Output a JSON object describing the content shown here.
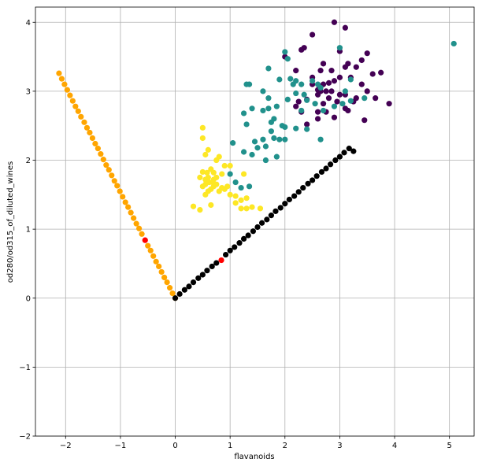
{
  "chart_data": {
    "type": "scatter",
    "title": "",
    "xlabel": "flavanoids",
    "ylabel": "od280/od315_of_diluted_wines",
    "xlim": [
      -2.55,
      5.45
    ],
    "ylim": [
      -2.0,
      4.22
    ],
    "xticks": [
      -2,
      -1,
      0,
      1,
      2,
      3,
      4,
      5
    ],
    "yticks": [
      -2,
      -1,
      0,
      1,
      2,
      3,
      4
    ],
    "grid": true,
    "legend": "none",
    "colors": {
      "class_0": "#440154",
      "class_1": "#21918c",
      "class_2": "#fde725",
      "vector_a": "#ffa500",
      "vector_b": "#000000",
      "highlight": "#ff0000"
    },
    "series": [
      {
        "color_key": "class_0",
        "points": [
          [
            2.9,
            4.0
          ],
          [
            3.1,
            3.92
          ],
          [
            2.5,
            3.82
          ],
          [
            2.3,
            3.6
          ],
          [
            2.35,
            3.63
          ],
          [
            2.7,
            3.4
          ],
          [
            3.0,
            3.58
          ],
          [
            3.15,
            3.4
          ],
          [
            3.5,
            3.55
          ],
          [
            3.4,
            3.45
          ],
          [
            2.65,
            3.3
          ],
          [
            2.85,
            3.3
          ],
          [
            3.1,
            3.35
          ],
          [
            3.3,
            3.35
          ],
          [
            3.6,
            3.25
          ],
          [
            3.75,
            3.27
          ],
          [
            2.2,
            3.3
          ],
          [
            2.0,
            3.5
          ],
          [
            2.5,
            3.2
          ],
          [
            2.7,
            3.1
          ],
          [
            2.9,
            3.15
          ],
          [
            3.0,
            3.2
          ],
          [
            3.2,
            3.2
          ],
          [
            3.4,
            3.1
          ],
          [
            3.5,
            3.0
          ],
          [
            3.65,
            2.9
          ],
          [
            3.3,
            2.9
          ],
          [
            3.1,
            2.95
          ],
          [
            2.95,
            2.85
          ],
          [
            2.8,
            2.9
          ],
          [
            2.6,
            2.95
          ],
          [
            2.65,
            3.0
          ],
          [
            2.75,
            3.0
          ],
          [
            2.7,
            2.82
          ],
          [
            2.6,
            2.7
          ],
          [
            2.4,
            2.88
          ],
          [
            2.3,
            2.7
          ],
          [
            2.25,
            2.85
          ],
          [
            3.25,
            2.85
          ],
          [
            3.9,
            2.82
          ],
          [
            3.45,
            2.58
          ],
          [
            3.1,
            2.75
          ],
          [
            2.9,
            2.62
          ],
          [
            2.75,
            2.7
          ],
          [
            2.6,
            2.6
          ],
          [
            2.4,
            2.52
          ],
          [
            3.15,
            2.72
          ],
          [
            2.8,
            3.12
          ],
          [
            2.6,
            3.02
          ],
          [
            2.2,
            2.78
          ],
          [
            2.5,
            3.1
          ],
          [
            3.0,
            2.95
          ],
          [
            2.85,
            3.0
          ]
        ]
      },
      {
        "color_key": "class_1",
        "points": [
          [
            5.08,
            3.69
          ],
          [
            2.0,
            3.57
          ],
          [
            2.05,
            3.47
          ],
          [
            1.9,
            3.17
          ],
          [
            2.2,
            3.15
          ],
          [
            1.7,
            3.33
          ],
          [
            1.6,
            3.0
          ],
          [
            1.35,
            3.1
          ],
          [
            1.7,
            2.9
          ],
          [
            1.3,
            3.1
          ],
          [
            2.1,
            3.18
          ],
          [
            2.15,
            3.1
          ],
          [
            2.3,
            3.1
          ],
          [
            2.5,
            3.15
          ],
          [
            2.6,
            3.1
          ],
          [
            2.65,
            3.05
          ],
          [
            3.0,
            3.63
          ],
          [
            3.1,
            3.0
          ],
          [
            3.2,
            3.17
          ],
          [
            3.45,
            2.9
          ],
          [
            3.2,
            2.86
          ],
          [
            3.05,
            2.82
          ],
          [
            2.9,
            2.78
          ],
          [
            2.7,
            2.72
          ],
          [
            2.55,
            2.82
          ],
          [
            2.4,
            2.87
          ],
          [
            2.35,
            2.95
          ],
          [
            2.2,
            2.97
          ],
          [
            2.3,
            2.72
          ],
          [
            2.05,
            2.88
          ],
          [
            1.85,
            2.78
          ],
          [
            1.7,
            2.75
          ],
          [
            1.4,
            2.75
          ],
          [
            1.25,
            2.68
          ],
          [
            1.3,
            2.52
          ],
          [
            1.6,
            2.72
          ],
          [
            1.8,
            2.6
          ],
          [
            1.95,
            2.5
          ],
          [
            2.0,
            2.48
          ],
          [
            1.75,
            2.42
          ],
          [
            1.45,
            2.27
          ],
          [
            1.5,
            2.18
          ],
          [
            1.6,
            2.3
          ],
          [
            1.65,
            2.2
          ],
          [
            1.8,
            2.32
          ],
          [
            1.85,
            2.05
          ],
          [
            1.65,
            2.0
          ],
          [
            1.9,
            2.3
          ],
          [
            1.4,
            2.08
          ],
          [
            1.25,
            2.12
          ],
          [
            1.05,
            2.25
          ],
          [
            1.0,
            1.8
          ],
          [
            1.1,
            1.68
          ],
          [
            1.2,
            1.6
          ],
          [
            1.35,
            1.62
          ],
          [
            2.2,
            2.46
          ],
          [
            2.65,
            2.3
          ],
          [
            2.0,
            2.3
          ],
          [
            1.75,
            2.55
          ],
          [
            2.4,
            2.45
          ]
        ]
      },
      {
        "color_key": "class_2",
        "points": [
          [
            0.5,
            2.47
          ],
          [
            0.5,
            2.32
          ],
          [
            0.6,
            2.15
          ],
          [
            0.55,
            2.08
          ],
          [
            0.8,
            2.05
          ],
          [
            0.75,
            2.0
          ],
          [
            0.65,
            1.87
          ],
          [
            0.7,
            1.82
          ],
          [
            0.5,
            1.83
          ],
          [
            0.58,
            1.82
          ],
          [
            0.45,
            1.75
          ],
          [
            0.55,
            1.72
          ],
          [
            0.6,
            1.75
          ],
          [
            0.62,
            1.68
          ],
          [
            0.7,
            1.72
          ],
          [
            0.75,
            1.75
          ],
          [
            0.7,
            1.62
          ],
          [
            0.65,
            1.58
          ],
          [
            0.6,
            1.55
          ],
          [
            0.55,
            1.5
          ],
          [
            0.5,
            1.62
          ],
          [
            0.8,
            1.55
          ],
          [
            0.85,
            1.6
          ],
          [
            0.9,
            1.58
          ],
          [
            0.95,
            1.62
          ],
          [
            1.0,
            1.92
          ],
          [
            0.9,
            1.92
          ],
          [
            0.85,
            1.8
          ],
          [
            1.0,
            1.5
          ],
          [
            1.1,
            1.48
          ],
          [
            1.2,
            1.42
          ],
          [
            1.3,
            1.45
          ],
          [
            1.4,
            1.32
          ],
          [
            1.3,
            1.3
          ],
          [
            1.2,
            1.3
          ],
          [
            1.1,
            1.38
          ],
          [
            1.55,
            1.3
          ],
          [
            0.45,
            1.28
          ],
          [
            0.33,
            1.33
          ],
          [
            0.65,
            1.35
          ],
          [
            0.75,
            1.65
          ],
          [
            1.25,
            1.8
          ],
          [
            0.55,
            1.65
          ],
          [
            0.68,
            1.68
          ]
        ]
      },
      {
        "color_key": "vector_a",
        "points": [
          [
            -2.12,
            3.26
          ],
          [
            -2.07,
            3.18
          ],
          [
            -2.02,
            3.1
          ],
          [
            -1.97,
            3.02
          ],
          [
            -1.92,
            2.94
          ],
          [
            -1.87,
            2.86
          ],
          [
            -1.82,
            2.78
          ],
          [
            -1.77,
            2.71
          ],
          [
            -1.72,
            2.63
          ],
          [
            -1.66,
            2.55
          ],
          [
            -1.61,
            2.47
          ],
          [
            -1.56,
            2.4
          ],
          [
            -1.51,
            2.32
          ],
          [
            -1.46,
            2.24
          ],
          [
            -1.41,
            2.17
          ],
          [
            -1.36,
            2.09
          ],
          [
            -1.31,
            2.01
          ],
          [
            -1.26,
            1.93
          ],
          [
            -1.21,
            1.86
          ],
          [
            -1.16,
            1.78
          ],
          [
            -1.11,
            1.7
          ],
          [
            -1.06,
            1.63
          ],
          [
            -1.01,
            1.55
          ],
          [
            -0.96,
            1.47
          ],
          [
            -0.91,
            1.39
          ],
          [
            -0.86,
            1.32
          ],
          [
            -0.81,
            1.24
          ],
          [
            -0.76,
            1.16
          ],
          [
            -0.71,
            1.08
          ],
          [
            -0.66,
            1.01
          ],
          [
            -0.61,
            0.93
          ],
          [
            -0.5,
            0.76
          ],
          [
            -0.45,
            0.69
          ],
          [
            -0.4,
            0.61
          ],
          [
            -0.35,
            0.53
          ],
          [
            -0.3,
            0.46
          ],
          [
            -0.25,
            0.38
          ],
          [
            -0.2,
            0.3
          ],
          [
            -0.15,
            0.23
          ],
          [
            -0.1,
            0.15
          ],
          [
            -0.05,
            0.07
          ],
          [
            0.0,
            0.0
          ]
        ]
      },
      {
        "color_key": "vector_b",
        "points": [
          [
            0.0,
            0.0
          ],
          [
            0.08,
            0.06
          ],
          [
            0.17,
            0.12
          ],
          [
            0.25,
            0.17
          ],
          [
            0.33,
            0.23
          ],
          [
            0.42,
            0.29
          ],
          [
            0.5,
            0.34
          ],
          [
            0.58,
            0.4
          ],
          [
            0.67,
            0.46
          ],
          [
            0.75,
            0.51
          ],
          [
            0.92,
            0.63
          ],
          [
            1.0,
            0.69
          ],
          [
            1.08,
            0.74
          ],
          [
            1.17,
            0.8
          ],
          [
            1.25,
            0.86
          ],
          [
            1.33,
            0.91
          ],
          [
            1.42,
            0.97
          ],
          [
            1.5,
            1.03
          ],
          [
            1.58,
            1.09
          ],
          [
            1.67,
            1.14
          ],
          [
            1.75,
            1.2
          ],
          [
            1.83,
            1.26
          ],
          [
            1.92,
            1.31
          ],
          [
            2.0,
            1.37
          ],
          [
            2.08,
            1.43
          ],
          [
            2.17,
            1.48
          ],
          [
            2.25,
            1.54
          ],
          [
            2.33,
            1.6
          ],
          [
            2.42,
            1.66
          ],
          [
            2.5,
            1.71
          ],
          [
            2.58,
            1.77
          ],
          [
            2.67,
            1.83
          ],
          [
            2.75,
            1.88
          ],
          [
            2.83,
            1.94
          ],
          [
            2.92,
            2.0
          ],
          [
            3.0,
            2.05
          ],
          [
            3.08,
            2.11
          ],
          [
            3.17,
            2.17
          ],
          [
            3.25,
            2.13
          ]
        ]
      },
      {
        "color_key": "highlight",
        "points": [
          [
            -0.55,
            0.84
          ],
          [
            0.84,
            0.55
          ]
        ]
      }
    ]
  }
}
